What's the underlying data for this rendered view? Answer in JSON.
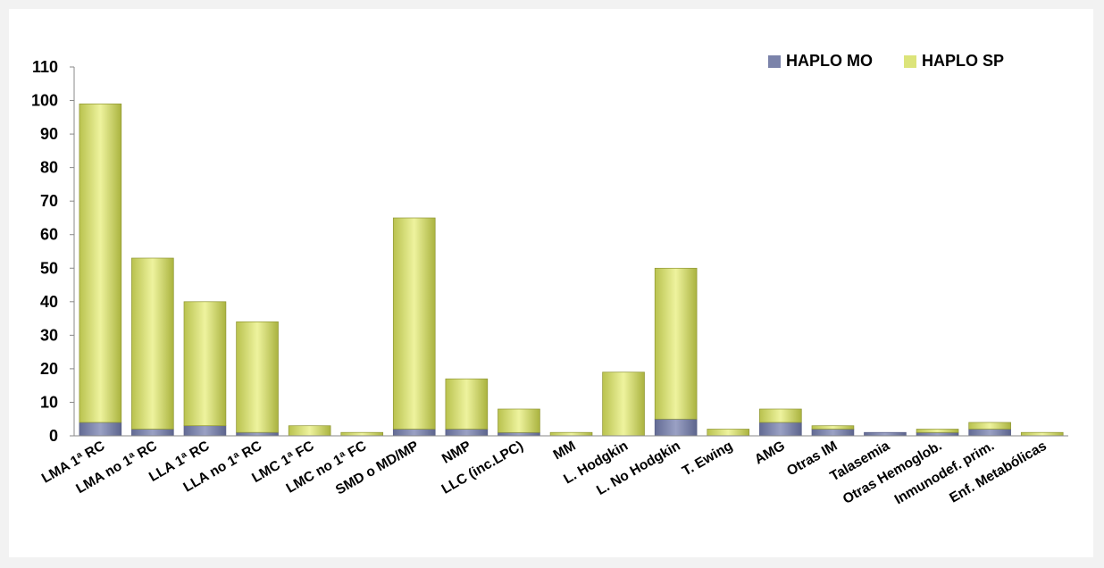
{
  "chart_data": {
    "type": "bar",
    "stacked": true,
    "title": "",
    "xlabel": "",
    "ylabel": "",
    "ylim": [
      0,
      110
    ],
    "ytick_step": 10,
    "grid": false,
    "legend_position": "top-right",
    "categories": [
      "LMA 1ª RC",
      "LMA no 1ª RC",
      "LLA 1ª RC",
      "LLA no 1ª RC",
      "LMC 1ª FC",
      "LMC no 1ª FC",
      "SMD o MD/MP",
      "NMP",
      "LLC (inc.LPC)",
      "MM",
      "L. Hodgkin",
      "L. No Hodgkin",
      "T. Ewing",
      "AMG",
      "Otras IM",
      "Talasemia",
      "Otras Hemoglob.",
      "Inmunodef. prim.",
      "Enf. Metabólicas"
    ],
    "series": [
      {
        "name": "HAPLO MO",
        "color": "#7b83aa",
        "values": [
          4,
          2,
          3,
          1,
          0,
          0,
          2,
          2,
          1,
          0,
          0,
          5,
          0,
          4,
          2,
          1,
          1,
          2,
          0
        ]
      },
      {
        "name": "HAPLO SP",
        "color": "#dce47a",
        "values": [
          95,
          51,
          37,
          33,
          3,
          1,
          63,
          15,
          7,
          1,
          19,
          45,
          2,
          4,
          1,
          0,
          1,
          2,
          1
        ]
      }
    ]
  }
}
